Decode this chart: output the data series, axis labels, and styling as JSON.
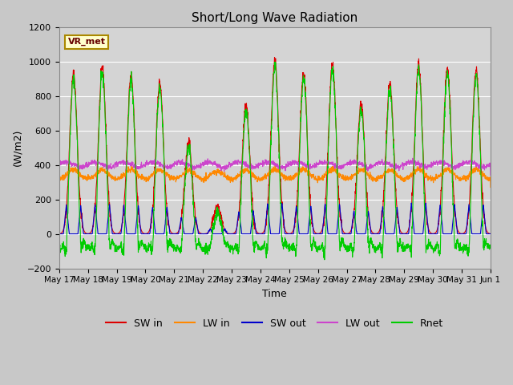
{
  "title": "Short/Long Wave Radiation",
  "xlabel": "Time",
  "ylabel": "(W/m2)",
  "ylim": [
    -200,
    1200
  ],
  "annotation": "VR_met",
  "series": {
    "SW_in": {
      "color": "#dd0000",
      "label": "SW in"
    },
    "LW_in": {
      "color": "#ff8800",
      "label": "LW in"
    },
    "SW_out": {
      "color": "#0000cc",
      "label": "SW out"
    },
    "LW_out": {
      "color": "#cc44cc",
      "label": "LW out"
    },
    "Rnet": {
      "color": "#00cc00",
      "label": "Rnet"
    }
  },
  "tick_labels": [
    "May 17",
    "May 18",
    "May 19",
    "May 20",
    "May 21",
    "May 22",
    "May 23",
    "May 24",
    "May 25",
    "May 26",
    "May 27",
    "May 28",
    "May 29",
    "May 30",
    "May 31",
    "Jun 1"
  ],
  "n_days": 15,
  "pts_per_day": 144,
  "peaks_sw": [
    930,
    965,
    920,
    880,
    535,
    160,
    750,
    1005,
    930,
    990,
    755,
    870,
    990,
    960,
    955
  ]
}
